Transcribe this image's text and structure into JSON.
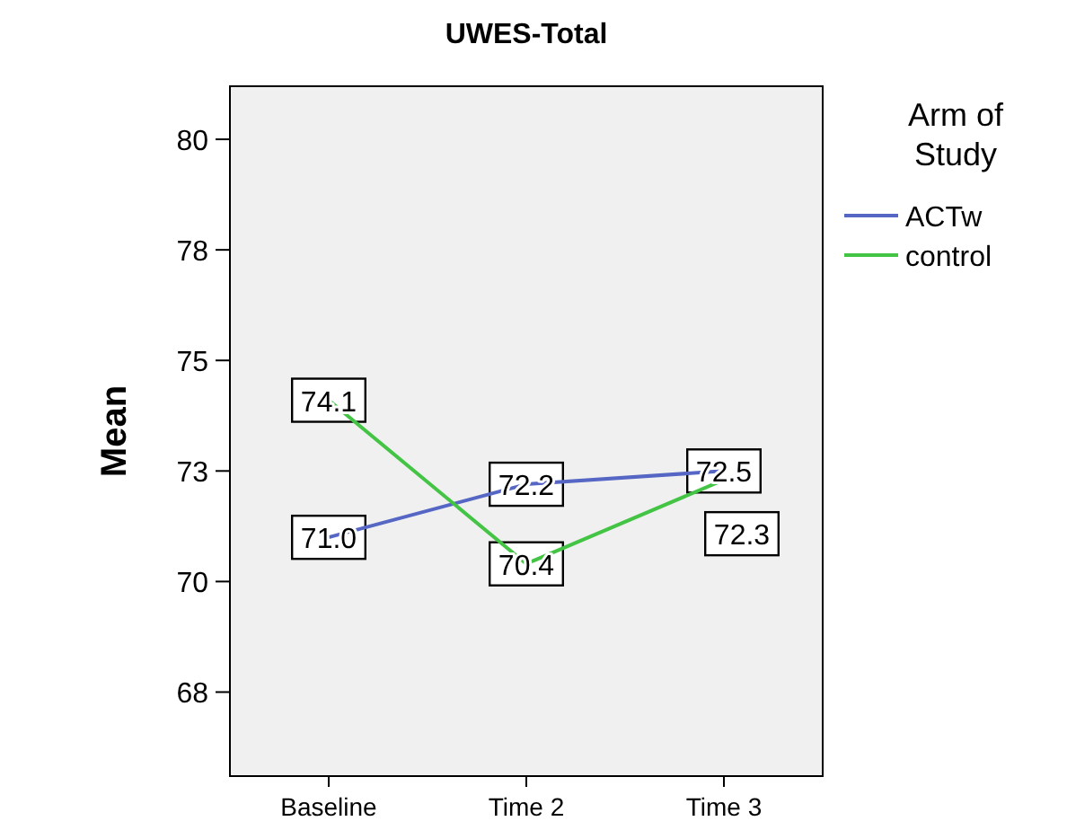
{
  "chart_data": {
    "type": "line",
    "title": "UWES-Total",
    "ylabel": "Mean",
    "legend_title": "Arm of Study",
    "legend": "right",
    "categories": [
      "Baseline",
      "Time 2",
      "Time 3"
    ],
    "series": [
      {
        "name": "ACTw",
        "color": "#5566c4",
        "values": [
          71.0,
          72.2,
          72.5
        ],
        "value_labels": [
          "71.0",
          "72.2",
          "72.5"
        ]
      },
      {
        "name": "control",
        "color": "#44c444",
        "values": [
          74.1,
          70.4,
          72.3
        ],
        "value_labels": [
          "74.1",
          "70.4",
          "72.3"
        ]
      }
    ],
    "ylim": [
      65.6,
      81.2
    ],
    "yticks": [
      {
        "value": 67.5,
        "label": "68"
      },
      {
        "value": 70,
        "label": "70"
      },
      {
        "value": 72.5,
        "label": "73"
      },
      {
        "value": 75,
        "label": "75"
      },
      {
        "value": 77.5,
        "label": "78"
      },
      {
        "value": 80,
        "label": "80"
      }
    ],
    "grid": false,
    "marker": "square",
    "line_style": "solid"
  }
}
